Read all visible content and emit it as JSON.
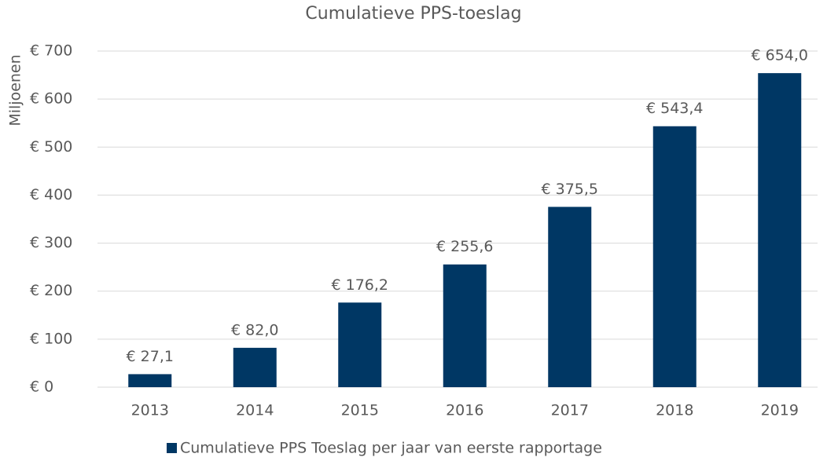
{
  "chart_data": {
    "type": "bar",
    "title": "Cumulatieve PPS-toeslag",
    "y_label": "Miljoenen",
    "categories": [
      "2013",
      "2014",
      "2015",
      "2016",
      "2017",
      "2018",
      "2019"
    ],
    "series": [
      {
        "name": "Cumulatieve PPS Toeslag per jaar van eerste rapportage",
        "color": "#003764",
        "values": [
          27.1,
          82.0,
          176.2,
          255.6,
          375.5,
          543.4,
          654.0
        ],
        "value_labels": [
          "€ 27,1",
          "€ 82,0",
          "€ 176,2",
          "€ 255,6",
          "€ 375,5",
          "€ 543,4",
          "€ 654,0"
        ]
      }
    ],
    "ylim": [
      0,
      700
    ],
    "yticks": [
      {
        "value": 0,
        "label": "€ 0"
      },
      {
        "value": 100,
        "label": "€ 100"
      },
      {
        "value": 200,
        "label": "€ 200"
      },
      {
        "value": 300,
        "label": "€ 300"
      },
      {
        "value": 400,
        "label": "€ 400"
      },
      {
        "value": 500,
        "label": "€ 500"
      },
      {
        "value": 600,
        "label": "€ 600"
      },
      {
        "value": 700,
        "label": "€ 700"
      }
    ],
    "grid": true,
    "legend": "bottom"
  }
}
